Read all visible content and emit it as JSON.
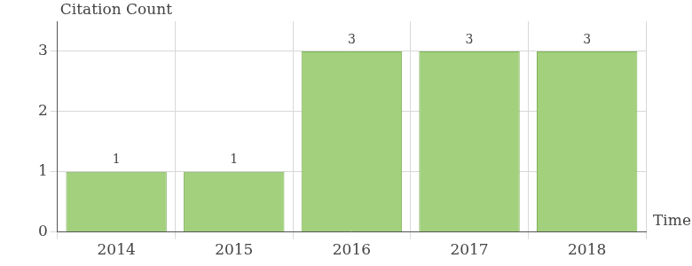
{
  "chart_data": {
    "type": "bar",
    "x_label": "Time",
    "y_label": "Citation Count",
    "categories": [
      "2014",
      "2015",
      "2016",
      "2017",
      "2018"
    ],
    "values": [
      1,
      1,
      3,
      3,
      3
    ],
    "color": "#a2d07c",
    "ylim": [
      0,
      3.5
    ],
    "yticks": [
      0,
      1,
      2,
      3
    ],
    "grid": true,
    "data_labels": true
  }
}
